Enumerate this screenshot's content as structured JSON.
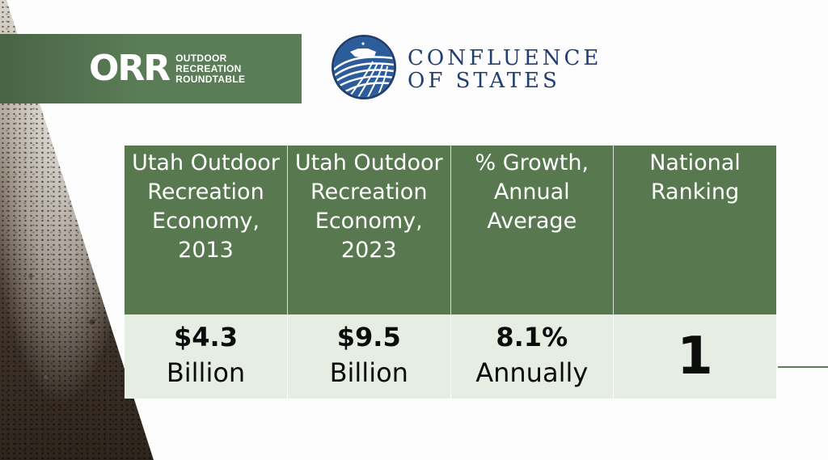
{
  "orr_logo": {
    "mark": "ORR",
    "words": [
      "OUTDOOR",
      "RECREATION",
      "ROUNDTABLE"
    ]
  },
  "confluence_logo": {
    "line1": "CONFLUENCE",
    "line2": "OF STATES",
    "color": "#1f3f73"
  },
  "table": {
    "header_color": "#58794f",
    "body_color": "#e6ede3",
    "headers": [
      "Utah Outdoor Recreation Economy, 2013",
      "Utah Outdoor Recreation Economy, 2023",
      "% Growth, Annual Average",
      "National Ranking"
    ],
    "values": [
      {
        "amount": "$4.3",
        "unit": "Billion"
      },
      {
        "amount": "$9.5",
        "unit": "Billion"
      },
      {
        "amount": "8.1%",
        "unit": "Annually"
      },
      {
        "amount": "1",
        "unit": ""
      }
    ]
  }
}
